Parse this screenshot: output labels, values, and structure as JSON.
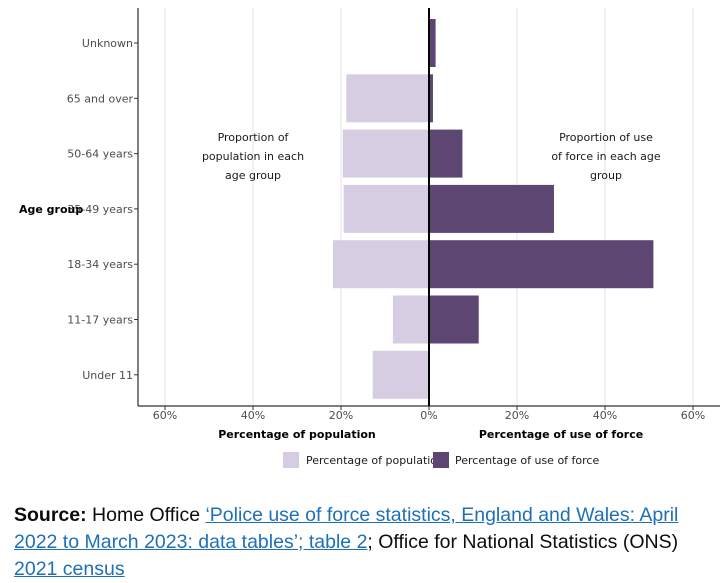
{
  "chart_data": {
    "type": "bar",
    "orientation": "horizontal-diverging",
    "categories": [
      "Unknown",
      "65 and over",
      "50-64 years",
      "35-49 years",
      "18-34 years",
      "11-17 years",
      "Under 11"
    ],
    "y_axis_title": "Age group",
    "series": [
      {
        "name": "Percentage of population",
        "side": "left",
        "color": "#d6cde3",
        "values": [
          0,
          18.8,
          19.6,
          19.4,
          21.8,
          8.2,
          12.8
        ]
      },
      {
        "name": "Percentage of use of force",
        "side": "right",
        "color": "#5e4673",
        "values": [
          1.5,
          0.9,
          7.6,
          28.4,
          51.0,
          11.3,
          0
        ]
      }
    ],
    "left_axis": {
      "label": "Percentage of population",
      "ticks": [
        "60%",
        "40%",
        "20%",
        "0%"
      ],
      "range": [
        0,
        65
      ]
    },
    "right_axis": {
      "label": "Percentage of use of force",
      "ticks": [
        "20%",
        "40%",
        "60%"
      ],
      "range": [
        0,
        65
      ]
    },
    "annotations": [
      {
        "side": "left",
        "lines": [
          "Proportion of",
          "population in each",
          "age group"
        ]
      },
      {
        "side": "right",
        "lines": [
          "Proportion of use",
          "of force in each age",
          "group"
        ]
      }
    ],
    "grid": "vertical",
    "legend_position": "bottom"
  },
  "source": {
    "label": "Source:",
    "text1": " Home Office ",
    "link1": "‘Police use of force statistics, England and Wales: April 2022 to March 2023: data tables’; table 2",
    "text2": "; Office for National Statistics (ONS) ",
    "link2": "2021 census"
  }
}
